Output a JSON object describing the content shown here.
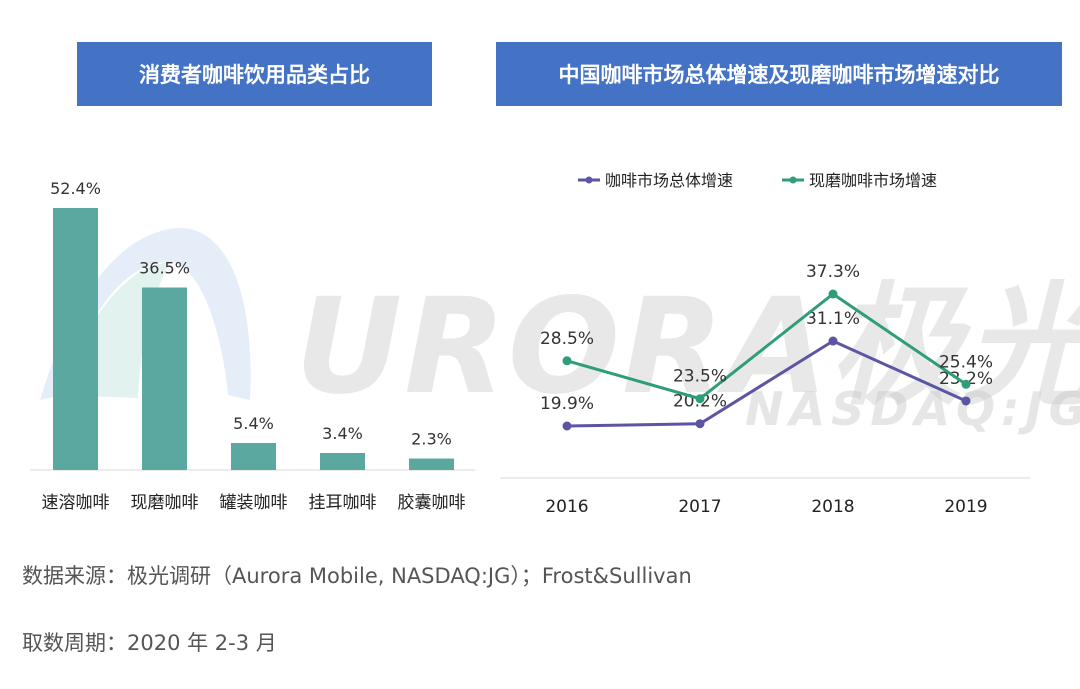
{
  "colors": {
    "title_bg": "#4472c4",
    "bar": "#5ba8a0",
    "line_overall": "#5b55a4",
    "line_fresh": "#2e9e78"
  },
  "watermark": {
    "main": "URORA极光",
    "sub": "NASDAQ:JG"
  },
  "chart_data": [
    {
      "type": "bar",
      "title": "消费者咖啡饮用品类占比",
      "categories": [
        "速溶咖啡",
        "现磨咖啡",
        "罐装咖啡",
        "挂耳咖啡",
        "胶囊咖啡"
      ],
      "values": [
        52.4,
        36.5,
        5.4,
        3.4,
        2.3
      ],
      "value_labels": [
        "52.4%",
        "36.5%",
        "5.4%",
        "3.4%",
        "2.3%"
      ],
      "ylim": [
        0,
        60
      ],
      "grid": false
    },
    {
      "type": "line",
      "title": "中国咖啡市场总体增速及现磨咖啡市场增速对比",
      "x": [
        "2016",
        "2017",
        "2018",
        "2019"
      ],
      "legend_position": "top",
      "ylim": [
        0,
        45
      ],
      "grid": false,
      "series": [
        {
          "name": "咖啡市场总体增速",
          "values": [
            19.9,
            20.2,
            31.1,
            23.2
          ],
          "labels": [
            "19.9%",
            "20.2%",
            "31.1%",
            "23.2%"
          ]
        },
        {
          "name": "现磨咖啡市场增速",
          "values": [
            28.5,
            23.5,
            37.3,
            25.4
          ],
          "labels": [
            "28.5%",
            "23.5%",
            "37.3%",
            "25.4%"
          ]
        }
      ]
    }
  ],
  "footer": {
    "source": "数据来源：极光调研（Aurora Mobile, NASDAQ:JG）；Frost&Sullivan",
    "period": "取数周期：2020 年 2-3 月"
  }
}
